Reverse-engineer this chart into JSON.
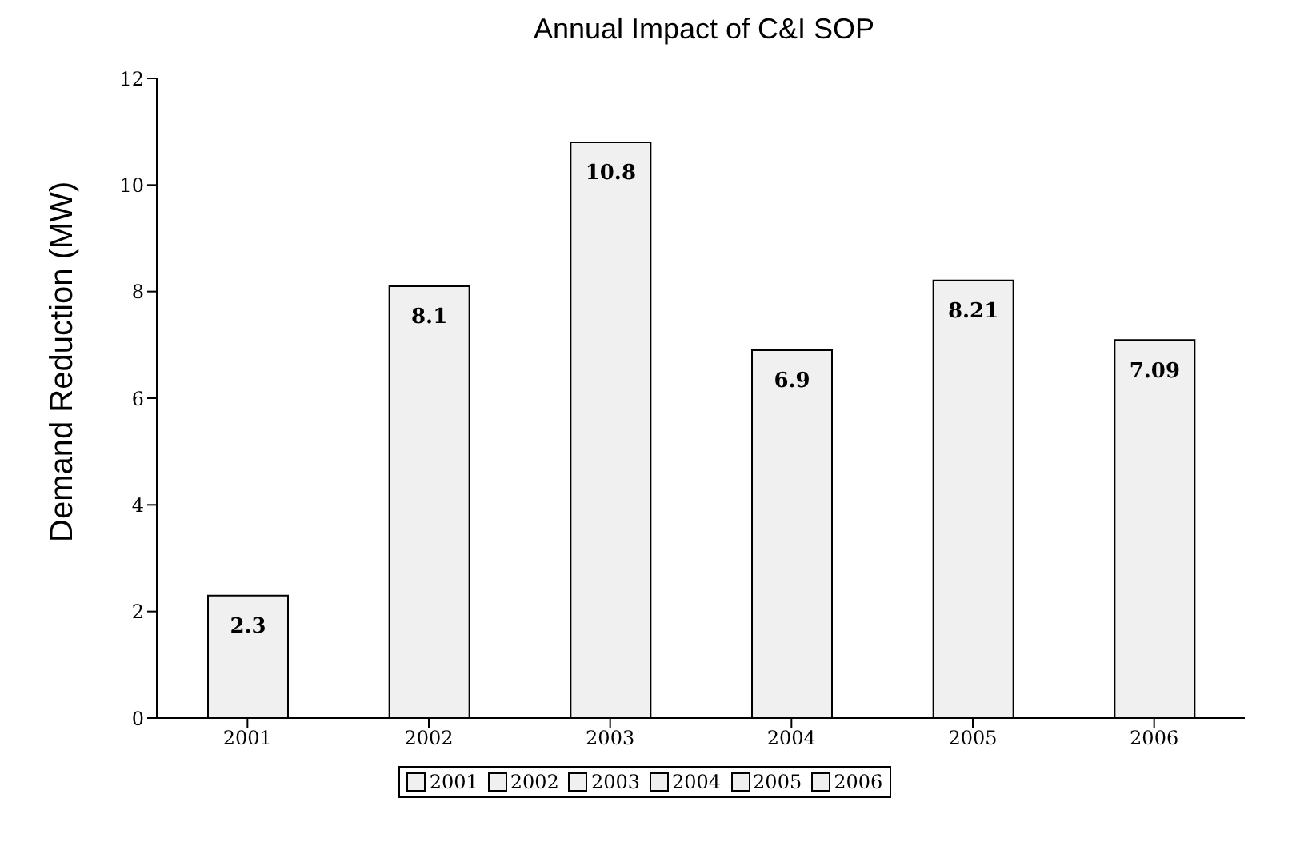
{
  "chart_data": {
    "type": "bar",
    "title": "Annual Impact of C&I SOP",
    "ylabel": "Demand Reduction (MW)",
    "categories": [
      "2001",
      "2002",
      "2003",
      "2004",
      "2005",
      "2006"
    ],
    "series": [
      {
        "name": "2001",
        "color": "#f0f0f0",
        "values": [
          2.3,
          null,
          null,
          null,
          null,
          null
        ]
      },
      {
        "name": "2002",
        "color": "#f0f0f0",
        "values": [
          null,
          8.1,
          null,
          null,
          null,
          null
        ]
      },
      {
        "name": "2003",
        "color": "#f0f0f0",
        "values": [
          null,
          null,
          10.8,
          null,
          null,
          null
        ]
      },
      {
        "name": "2004",
        "color": "#f0f0f0",
        "values": [
          null,
          null,
          null,
          6.9,
          null,
          null
        ]
      },
      {
        "name": "2005",
        "color": "#f0f0f0",
        "values": [
          null,
          null,
          null,
          null,
          8.21,
          null
        ]
      },
      {
        "name": "2006",
        "color": "#f0f0f0",
        "values": [
          null,
          null,
          null,
          null,
          null,
          7.09
        ]
      }
    ],
    "stacked": true,
    "ylim": [
      0,
      12
    ],
    "yticks": [
      0,
      2,
      4,
      6,
      8,
      10,
      12
    ],
    "data_labels": true,
    "legend": "bottom",
    "grid": false
  }
}
